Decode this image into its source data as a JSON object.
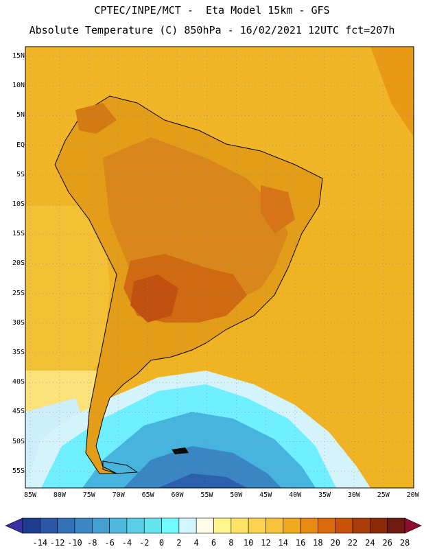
{
  "header": {
    "line1": "CPTEC/INPE/MCT -  Eta Model 15km - GFS",
    "line2": "Absolute Temperature (C) 850hPa - 16/02/2021 12UTC fct=207h"
  },
  "map": {
    "lat_labels": [
      "15N",
      "10N",
      "5N",
      "EQ",
      "5S",
      "10S",
      "15S",
      "20S",
      "25S",
      "30S",
      "35S",
      "40S",
      "45S",
      "50S",
      "55S"
    ],
    "lon_labels": [
      "85W",
      "80W",
      "75W",
      "70W",
      "65W",
      "60W",
      "55W",
      "50W",
      "45W",
      "40W",
      "35W",
      "30W",
      "25W",
      "20W"
    ],
    "ocean_color": "#eeb01a",
    "land_color": "#e29c17",
    "hot_color": "#d0640f",
    "cold_color": "#3aa6d6"
  },
  "colorbar": {
    "ticks": [
      "-14",
      "-12",
      "-10",
      "-8",
      "-6",
      "-4",
      "-2",
      "0",
      "2",
      "4",
      "6",
      "8",
      "10",
      "12",
      "14",
      "16",
      "18",
      "20",
      "22",
      "24",
      "26",
      "28"
    ],
    "colors": [
      "#1c3d8e",
      "#2a58a6",
      "#3470b5",
      "#3c88c4",
      "#44a0d0",
      "#4db8dc",
      "#59cde4",
      "#64e4ef",
      "#6ffbff",
      "#d2f6ff",
      "#fffbe6",
      "#fff58c",
      "#fde364",
      "#fcd34c",
      "#f7c33a",
      "#efa91c",
      "#e68a12",
      "#db6a0c",
      "#c85209",
      "#a93c08",
      "#8a2a08",
      "#6e1b10"
    ],
    "low_cap_color": "#3a2f9e",
    "high_cap_color": "#8e0c2f"
  }
}
